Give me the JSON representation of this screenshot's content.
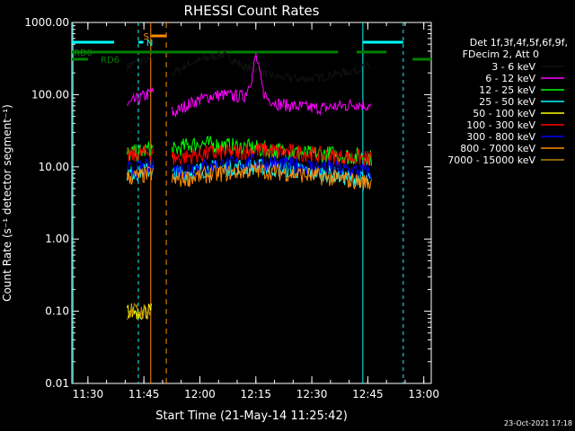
{
  "chart_data": {
    "type": "line",
    "title": "RHESSI Count Rates",
    "xlabel": "Start Time (21-May-14 11:25:42)",
    "ylabel": "Count Rate (s⁻¹ detector segment⁻¹)",
    "y_scale": "log",
    "ylim": [
      0.01,
      1000
    ],
    "xlim": [
      "11:25:42",
      "13:02:00"
    ],
    "x_ticks": [
      "11:30",
      "11:45",
      "12:00",
      "12:15",
      "12:30",
      "12:45",
      "13:00"
    ],
    "y_ticks": [
      "0.01",
      "0.10",
      "1.00",
      "10.00",
      "100.00",
      "1000.00"
    ],
    "grid": false,
    "legend_placement": "right",
    "legend_header": [
      "Det 1f,3f,4f,5f,6f,9f,",
      "FDecim 2, Att 0"
    ],
    "footer_date": "23-Oct-2021 17:18",
    "series": [
      {
        "name": "3 - 6 keV",
        "color": "#000000",
        "x": [
          "11:40:30",
          "11:42",
          "11:44",
          "11:46",
          "11:47",
          "11:53",
          "11:57",
          "12:00",
          "12:03",
          "12:06",
          "12:09",
          "12:12",
          "12:15",
          "12:18",
          "12:21",
          "12:24",
          "12:27",
          "12:30",
          "12:33",
          "12:36",
          "12:39",
          "12:42",
          "12:45",
          "12:46"
        ],
        "y": [
          240,
          270,
          290,
          300,
          310,
          200,
          270,
          300,
          330,
          360,
          300,
          240,
          220,
          190,
          175,
          170,
          165,
          168,
          175,
          190,
          205,
          220,
          250,
          240
        ]
      },
      {
        "name": "6 - 12 keV",
        "color": "#ff00ff",
        "x": [
          "11:40:30",
          "11:42",
          "11:44",
          "11:46",
          "11:47",
          "11:53",
          "11:57",
          "12:00",
          "12:03",
          "12:06",
          "12:09",
          "12:12",
          "12:14",
          "12:15",
          "12:17",
          "12:18",
          "12:21",
          "12:24",
          "12:27",
          "12:30",
          "12:33",
          "12:36",
          "12:39",
          "12:42",
          "12:45",
          "12:46"
        ],
        "y": [
          70,
          80,
          90,
          100,
          110,
          55,
          75,
          85,
          95,
          100,
          95,
          95,
          180,
          350,
          110,
          90,
          75,
          70,
          68,
          65,
          65,
          68,
          70,
          75,
          70,
          65
        ]
      },
      {
        "name": "12 - 25 keV",
        "color": "#00ff00",
        "x": [
          "11:40:30",
          "11:44",
          "11:47",
          "11:53",
          "11:57",
          "12:00",
          "12:05",
          "12:10",
          "12:15",
          "12:20",
          "12:25",
          "12:30",
          "12:35",
          "12:40",
          "12:45",
          "12:46"
        ],
        "y": [
          15,
          16,
          18,
          17,
          20,
          21,
          20,
          19,
          18,
          17,
          16,
          15,
          15,
          14,
          14,
          13
        ]
      },
      {
        "name": "25 - 50 keV",
        "color": "#00ffff",
        "x": [
          "11:40:30",
          "11:44",
          "11:47",
          "11:53",
          "11:57",
          "12:00",
          "12:05",
          "12:10",
          "12:15",
          "12:20",
          "12:25",
          "12:30",
          "12:35",
          "12:40",
          "12:45",
          "12:46"
        ],
        "y": [
          8,
          8.5,
          9,
          8,
          8.5,
          9,
          9.5,
          10,
          10,
          9.5,
          9,
          8.5,
          8,
          7,
          6.5,
          6
        ]
      },
      {
        "name": "50 - 100 keV",
        "color": "#ffff00",
        "x": [
          "11:40:30",
          "11:46",
          "11:47"
        ],
        "y": [
          0.1,
          0.1,
          0.1
        ]
      },
      {
        "name": "100 - 300 keV",
        "color": "#ff0000",
        "x": [
          "11:40:30",
          "11:44",
          "11:47",
          "11:53",
          "11:57",
          "12:00",
          "12:05",
          "12:10",
          "12:15",
          "12:20",
          "12:25",
          "12:30",
          "12:35",
          "12:40",
          "12:45",
          "12:46"
        ],
        "y": [
          14,
          15,
          16,
          13,
          14,
          15,
          15.5,
          16,
          17,
          16.5,
          16,
          15,
          14,
          13.5,
          13,
          13
        ]
      },
      {
        "name": "300 - 800 keV",
        "color": "#0000ff",
        "x": [
          "11:40:30",
          "11:44",
          "11:47",
          "11:53",
          "11:57",
          "12:00",
          "12:05",
          "12:10",
          "12:15",
          "12:20",
          "12:25",
          "12:30",
          "12:35",
          "12:40",
          "12:45",
          "12:46"
        ],
        "y": [
          9,
          9.5,
          10,
          9,
          9.5,
          10,
          10.5,
          11,
          11.5,
          11,
          10.5,
          10,
          9.5,
          9,
          8.5,
          8
        ]
      },
      {
        "name": "800 - 7000 keV",
        "color": "#ff8c00",
        "x": [
          "11:40:30",
          "11:44",
          "11:47",
          "11:53",
          "11:57",
          "12:00",
          "12:05",
          "12:10",
          "12:15",
          "12:20",
          "12:25",
          "12:30",
          "12:35",
          "12:40",
          "12:45",
          "12:46"
        ],
        "y": [
          7,
          7.5,
          8,
          6.5,
          7,
          7.5,
          8,
          8.5,
          9,
          8.5,
          8,
          7.5,
          7,
          6.5,
          6,
          6
        ]
      },
      {
        "name": "7000 - 15000 keV",
        "color": "#b8860b",
        "x": [
          "11:40:30",
          "11:46",
          "11:47"
        ],
        "y": [
          0.1,
          0.1,
          0.1
        ]
      }
    ],
    "markers": [
      {
        "label": "S",
        "color": "#ff8c00"
      },
      {
        "label": "N",
        "color": "#00ffff"
      },
      {
        "label": "RD0",
        "color": "#008000"
      },
      {
        "label": "RD6",
        "color": "#008000"
      }
    ]
  }
}
